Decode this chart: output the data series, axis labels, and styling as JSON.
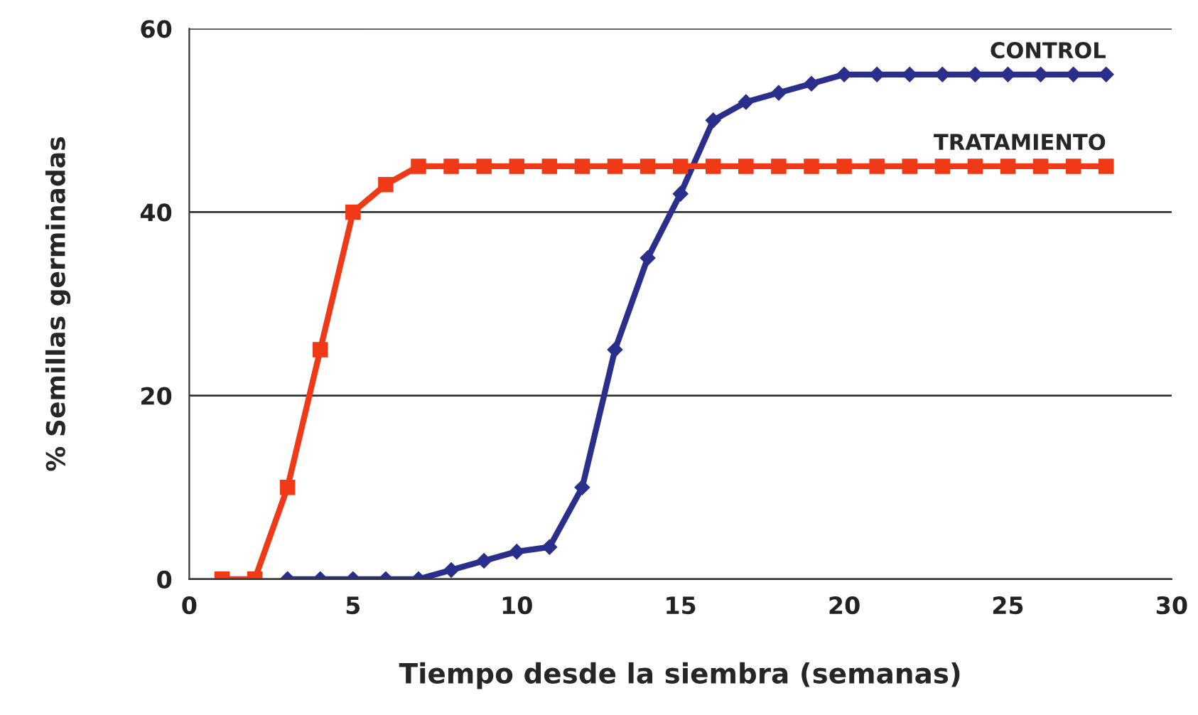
{
  "chart_data": {
    "type": "line",
    "xlabel": "Tiempo desde la siembra (semanas)",
    "ylabel": "% Semillas germinadas",
    "xlim": [
      0,
      30
    ],
    "xticks": [
      0,
      5,
      10,
      15,
      20,
      25,
      30
    ],
    "ylim": [
      0,
      60
    ],
    "yticks": [
      0,
      20,
      40,
      60
    ],
    "grid": "y",
    "legend": false,
    "line_style": "solid",
    "series": [
      {
        "name": "CONTROL",
        "color": "#2b2f8c",
        "marker": "diamond",
        "x": [
          3,
          4,
          5,
          6,
          7,
          8,
          9,
          10,
          11,
          12,
          13,
          14,
          15,
          16,
          17,
          18,
          19,
          20,
          21,
          22,
          23,
          24,
          25,
          26,
          27,
          28
        ],
        "values": [
          0,
          0,
          0,
          0,
          0,
          1,
          2,
          3,
          3.5,
          10,
          25,
          35,
          42,
          50,
          52,
          53,
          54,
          55,
          55,
          55,
          55,
          55,
          55,
          55,
          55,
          55
        ]
      },
      {
        "name": "TRATAMIENTO",
        "color": "#f03a17",
        "marker": "square",
        "x": [
          1,
          2,
          3,
          4,
          5,
          6,
          7,
          8,
          9,
          10,
          11,
          12,
          13,
          14,
          15,
          16,
          17,
          18,
          19,
          20,
          21,
          22,
          23,
          24,
          25,
          26,
          27,
          28
        ],
        "values": [
          0,
          0,
          10,
          25,
          40,
          43,
          45,
          45,
          45,
          45,
          45,
          45,
          45,
          45,
          45,
          45,
          45,
          45,
          45,
          45,
          45,
          45,
          45,
          45,
          45,
          45,
          45,
          45
        ]
      }
    ]
  }
}
